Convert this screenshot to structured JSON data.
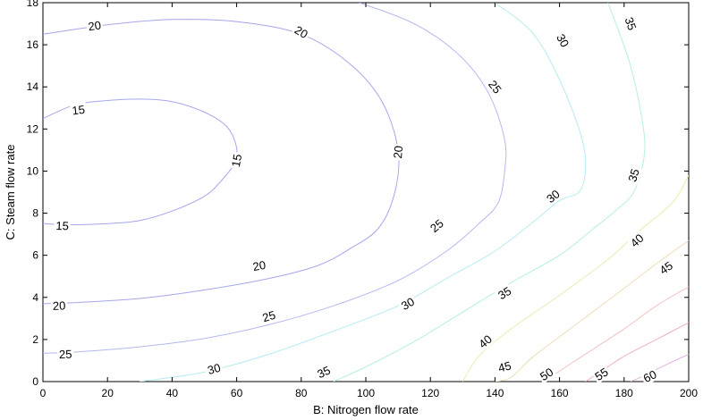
{
  "chart_data": {
    "type": "contour",
    "xlabel": "B: Nitrogen flow rate",
    "ylabel": "C: Steam flow rate",
    "xlim": [
      0,
      200
    ],
    "ylim": [
      0,
      18
    ],
    "x_ticks": [
      0,
      20,
      40,
      60,
      80,
      100,
      120,
      140,
      160,
      180,
      200
    ],
    "y_ticks": [
      0,
      2,
      4,
      6,
      8,
      10,
      12,
      14,
      16,
      18
    ],
    "grid": false,
    "contours": [
      {
        "level": 15,
        "color": "#a6a6ec",
        "points": [
          [
            0,
            12.5
          ],
          [
            10,
            13.15
          ],
          [
            20,
            13.35
          ],
          [
            30,
            13.42
          ],
          [
            40,
            13.3
          ],
          [
            50,
            12.8
          ],
          [
            57,
            12.1
          ],
          [
            60,
            11.1
          ],
          [
            59,
            10.3
          ],
          [
            55,
            9.5
          ],
          [
            50,
            8.8
          ],
          [
            40,
            8.1
          ],
          [
            30,
            7.65
          ],
          [
            20,
            7.5
          ],
          [
            10,
            7.45
          ],
          [
            0,
            7.5
          ]
        ],
        "labels": [
          [
            11,
            12.9
          ],
          [
            60,
            10.5
          ],
          [
            6,
            7.4
          ]
        ]
      },
      {
        "level": 20,
        "color": "#a6a6ec",
        "points": [
          [
            0,
            16.5
          ],
          [
            20,
            16.95
          ],
          [
            40,
            17.2
          ],
          [
            60,
            17.1
          ],
          [
            80,
            16.5
          ],
          [
            95,
            15.1
          ],
          [
            105,
            13.3
          ],
          [
            110,
            11
          ],
          [
            109,
            9
          ],
          [
            104,
            7.3
          ],
          [
            95,
            6.3
          ],
          [
            85,
            5.5
          ],
          [
            70,
            4.9
          ],
          [
            50,
            4.35
          ],
          [
            30,
            3.95
          ],
          [
            10,
            3.75
          ],
          [
            0,
            3.7
          ]
        ],
        "labels": [
          [
            16,
            16.9
          ],
          [
            80,
            16.6
          ],
          [
            110,
            10.9
          ],
          [
            67,
            5.5
          ],
          [
            5,
            3.6
          ]
        ]
      },
      {
        "level": 25,
        "color": "#b3b8f0",
        "points": [
          [
            98,
            18
          ],
          [
            115,
            17
          ],
          [
            129,
            15.5
          ],
          [
            138,
            13.7
          ],
          [
            143,
            11.5
          ],
          [
            143,
            10
          ],
          [
            141,
            8.5
          ],
          [
            135,
            7.5
          ],
          [
            125,
            6.2
          ],
          [
            110,
            4.8
          ],
          [
            90,
            3.6
          ],
          [
            70,
            2.7
          ],
          [
            50,
            2.05
          ],
          [
            30,
            1.65
          ],
          [
            10,
            1.4
          ],
          [
            0,
            1.35
          ]
        ],
        "labels": [
          [
            140,
            14
          ],
          [
            122,
            7.4
          ],
          [
            70,
            3.1
          ],
          [
            7,
            1.3
          ]
        ]
      },
      {
        "level": 30,
        "color": "#b5ecf2",
        "points": [
          [
            140,
            18
          ],
          [
            152,
            16.5
          ],
          [
            161,
            14
          ],
          [
            167,
            11.5
          ],
          [
            168,
            10
          ],
          [
            166,
            9
          ],
          [
            160,
            8.6
          ],
          [
            152,
            7.6
          ],
          [
            140,
            6.2
          ],
          [
            125,
            4.9
          ],
          [
            110,
            3.6
          ],
          [
            90,
            2.4
          ],
          [
            70,
            1.3
          ],
          [
            50,
            0.45
          ],
          [
            30,
            0
          ]
        ],
        "labels": [
          [
            161,
            16.2
          ],
          [
            158,
            8.8
          ],
          [
            113,
            3.7
          ],
          [
            53,
            0.6
          ]
        ]
      },
      {
        "level": 35,
        "color": "#b5f0d8",
        "points": [
          [
            175,
            18
          ],
          [
            182,
            15
          ],
          [
            186,
            12
          ],
          [
            186,
            10.5
          ],
          [
            183,
            9
          ],
          [
            178,
            8.2
          ],
          [
            170,
            7.2
          ],
          [
            160,
            6
          ],
          [
            145,
            4.7
          ],
          [
            130,
            3.3
          ],
          [
            115,
            1.9
          ],
          [
            100,
            0.7
          ],
          [
            90,
            0
          ]
        ],
        "labels": [
          [
            182,
            17
          ],
          [
            183,
            9.8
          ],
          [
            143,
            4.2
          ],
          [
            87,
            0.45
          ]
        ]
      },
      {
        "level": 40,
        "color": "#e8ecb0",
        "points": [
          [
            200,
            9.8
          ],
          [
            195,
            8.5
          ],
          [
            185,
            7.2
          ],
          [
            175,
            5.8
          ],
          [
            160,
            4.1
          ],
          [
            145,
            2.5
          ],
          [
            135,
            1.2
          ],
          [
            130,
            0
          ]
        ],
        "labels": [
          [
            184,
            6.7
          ],
          [
            137,
            1.9
          ]
        ]
      },
      {
        "level": 45,
        "color": "#f0ddb8",
        "points": [
          [
            200,
            6.7
          ],
          [
            190,
            5.6
          ],
          [
            178,
            4.2
          ],
          [
            165,
            2.7
          ],
          [
            152,
            1.2
          ],
          [
            145,
            0.2
          ],
          [
            140,
            0
          ]
        ],
        "labels": [
          [
            193,
            5.4
          ],
          [
            143,
            0.7
          ]
        ]
      },
      {
        "level": 50,
        "color": "#f2c2c2",
        "points": [
          [
            200,
            4.5
          ],
          [
            190,
            3.6
          ],
          [
            180,
            2.5
          ],
          [
            170,
            1.5
          ],
          [
            160,
            0.5
          ],
          [
            155,
            0
          ]
        ],
        "labels": [
          [
            156,
            0.35
          ]
        ]
      },
      {
        "level": 55,
        "color": "#eeb0c0",
        "points": [
          [
            200,
            2.8
          ],
          [
            190,
            2
          ],
          [
            180,
            1.2
          ],
          [
            172,
            0.4
          ],
          [
            168,
            0
          ]
        ],
        "labels": [
          [
            173,
            0.35
          ]
        ]
      },
      {
        "level": 60,
        "color": "#dbb5dd",
        "points": [
          [
            200,
            1.3
          ],
          [
            193,
            0.8
          ],
          [
            185,
            0.2
          ],
          [
            182,
            0
          ]
        ],
        "labels": [
          [
            188,
            0.25
          ]
        ]
      }
    ]
  }
}
